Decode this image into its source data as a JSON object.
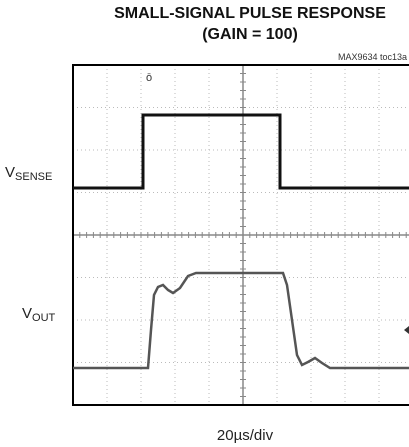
{
  "title": "SMALL-SIGNAL PULSE RESPONSE",
  "subtitle": "(GAIN = 100)",
  "figure_id": "MAX9634 toc13a",
  "channels": [
    {
      "name": "V",
      "subscript": "SENSE"
    },
    {
      "name": "V",
      "subscript": "OUT"
    }
  ],
  "time_scale": "20µs/div"
}
